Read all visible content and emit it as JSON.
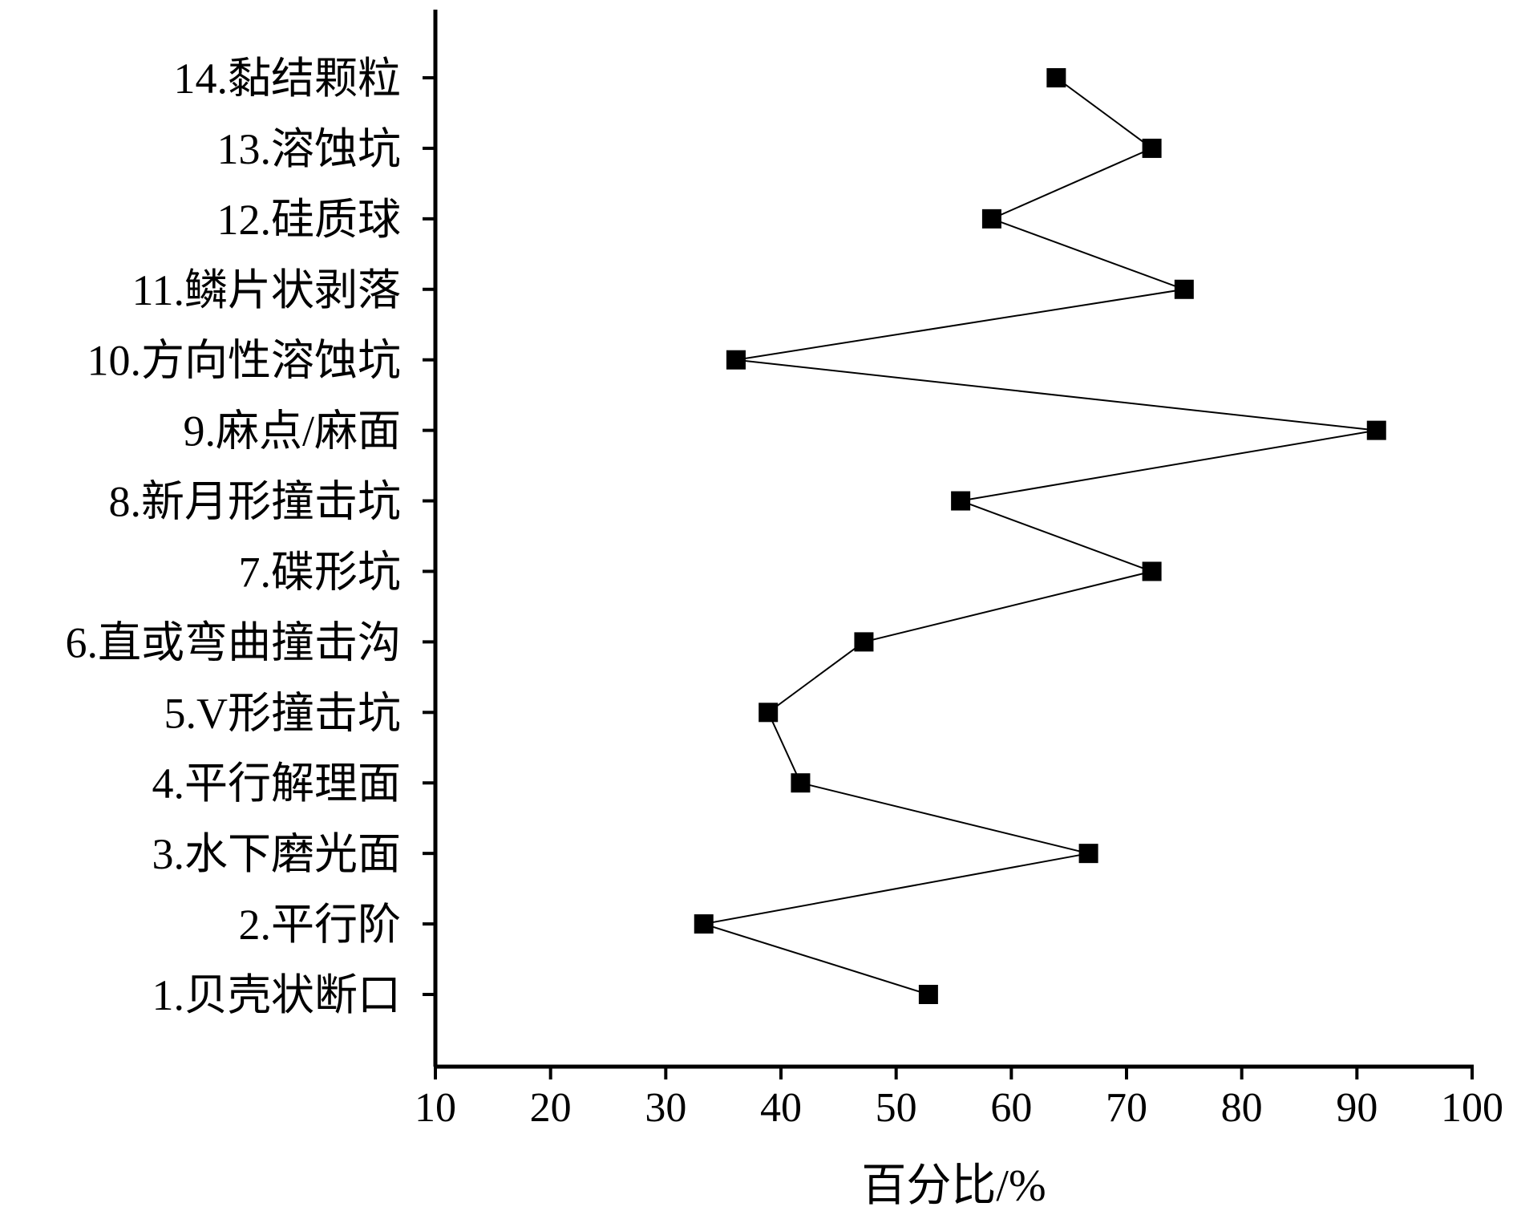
{
  "chart_data": {
    "type": "line",
    "orientation": "horizontal",
    "xlabel": "百分比/%",
    "ylabel": "",
    "xlim": [
      10,
      100
    ],
    "xticks": [
      "10",
      "20",
      "30",
      "40",
      "50",
      "60",
      "70",
      "80",
      "90",
      "100"
    ],
    "grid": false,
    "marker": "square",
    "categories": [
      "1.贝壳状断口",
      "2.平行阶",
      "3.水下磨光面",
      "4.平行解理面",
      "5.V形撞击坑",
      "6.直或弯曲撞击沟",
      "7.碟形坑",
      "8.新月形撞击坑",
      "9.麻点/麻面",
      "10.方向性溶蚀坑",
      "11.鳞片状剥落",
      "12.硅质球",
      "13.溶蚀坑",
      "14.黏结颗粒"
    ],
    "values": [
      52.8,
      33.3,
      66.7,
      41.7,
      38.9,
      47.2,
      72.2,
      55.6,
      91.7,
      36.1,
      75.0,
      58.3,
      72.2,
      63.9
    ],
    "colors": {
      "line": "#000000",
      "marker": "#000000",
      "axis": "#000000"
    }
  }
}
